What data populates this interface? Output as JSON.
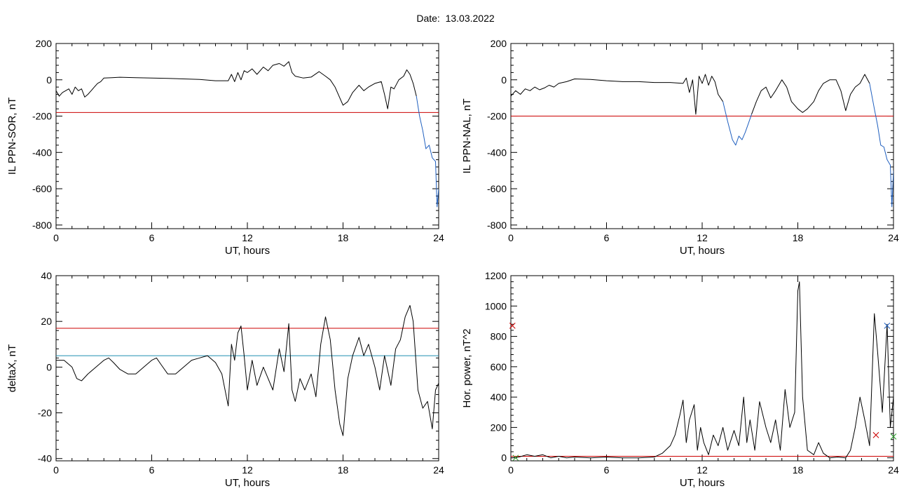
{
  "title": {
    "label": "Date:",
    "date": "13.03.2022"
  },
  "chart_data": [
    {
      "id": "il-sor",
      "type": "line",
      "ylabel": "IL PPN-SOR, nT",
      "xlabel": "UT, hours",
      "xlim": [
        0,
        24
      ],
      "ylim": [
        -820,
        200
      ],
      "xticks": [
        0,
        6,
        12,
        18,
        24
      ],
      "yticks": [
        -800,
        -600,
        -400,
        -200,
        0,
        200
      ],
      "hlines": [
        {
          "y": -180,
          "color": "#cc0000"
        }
      ],
      "series": [
        {
          "color": "#000000",
          "x": [
            0,
            0.2,
            0.4,
            0.6,
            0.8,
            1.0,
            1.2,
            1.4,
            1.6,
            1.8,
            2.0,
            2.2,
            2.4,
            2.6,
            2.8,
            3.0,
            3.5,
            4,
            5,
            6,
            7,
            8,
            9,
            10,
            10.8,
            11.0,
            11.2,
            11.4,
            11.6,
            11.8,
            12.0,
            12.3,
            12.6,
            13.0,
            13.3,
            13.6,
            14.0,
            14.3,
            14.6,
            14.8,
            15.0,
            15.5,
            16.0,
            16.5,
            16.9,
            17.2,
            17.5,
            17.8,
            18.0,
            18.3,
            18.6,
            19.0,
            19.3,
            19.6,
            20.0,
            20.4,
            20.6,
            20.8,
            21.0,
            21.2,
            21.5,
            21.8,
            22.0,
            22.2,
            22.4,
            22.6
          ],
          "y": [
            -60,
            -90,
            -70,
            -60,
            -50,
            -80,
            -40,
            -60,
            -50,
            -95,
            -80,
            -60,
            -40,
            -20,
            -10,
            10,
            12,
            14,
            12,
            10,
            8,
            5,
            2,
            -5,
            -5,
            30,
            -10,
            40,
            0,
            50,
            40,
            60,
            30,
            70,
            50,
            80,
            90,
            75,
            100,
            40,
            20,
            10,
            15,
            45,
            20,
            0,
            -40,
            -100,
            -140,
            -120,
            -70,
            -30,
            -60,
            -40,
            -20,
            -10,
            -80,
            -160,
            -40,
            -50,
            0,
            20,
            55,
            30,
            -20,
            -90
          ]
        },
        {
          "color": "#1f5fbf",
          "x": [
            22.6,
            22.8,
            23.0,
            23.2,
            23.4,
            23.6,
            23.8,
            23.9,
            24.0
          ],
          "y": [
            -90,
            -200,
            -280,
            -380,
            -360,
            -430,
            -450,
            -700,
            -600
          ]
        }
      ]
    },
    {
      "id": "il-nal",
      "type": "line",
      "ylabel": "IL PPN-NAL, nT",
      "xlabel": "UT, hours",
      "xlim": [
        0,
        24
      ],
      "ylim": [
        -820,
        200
      ],
      "xticks": [
        0,
        6,
        12,
        18,
        24
      ],
      "yticks": [
        -800,
        -600,
        -400,
        -200,
        0,
        200
      ],
      "hlines": [
        {
          "y": -200,
          "color": "#cc0000"
        }
      ],
      "series": [
        {
          "color": "#000000",
          "x": [
            0,
            0.3,
            0.6,
            0.9,
            1.2,
            1.5,
            1.8,
            2.1,
            2.4,
            2.7,
            3.0,
            3.5,
            4,
            5,
            6,
            7,
            8,
            9,
            10,
            10.8,
            11.0,
            11.2,
            11.4,
            11.6,
            11.8,
            12.0,
            12.2,
            12.4,
            12.6,
            12.8,
            13.0,
            13.3
          ],
          "y": [
            -90,
            -60,
            -80,
            -50,
            -60,
            -40,
            -55,
            -45,
            -30,
            -40,
            -20,
            -10,
            5,
            2,
            -5,
            -10,
            -10,
            -15,
            -15,
            -20,
            10,
            -70,
            0,
            -190,
            20,
            -20,
            30,
            -30,
            20,
            -10,
            -80,
            -120
          ]
        },
        {
          "color": "#1f5fbf",
          "x": [
            13.3,
            13.6,
            13.9,
            14.1,
            14.3,
            14.5,
            14.7,
            14.9,
            15.1
          ],
          "y": [
            -120,
            -230,
            -330,
            -360,
            -310,
            -330,
            -290,
            -240,
            -190
          ]
        },
        {
          "color": "#000000",
          "x": [
            15.1,
            15.4,
            15.7,
            16.0,
            16.3,
            16.6,
            17.0,
            17.3,
            17.6,
            18.0,
            18.3,
            18.6,
            19.0,
            19.3,
            19.6,
            20.0,
            20.4,
            20.7,
            21.0,
            21.3,
            21.6,
            21.9,
            22.2,
            22.5
          ],
          "y": [
            -190,
            -120,
            -60,
            -40,
            -100,
            -60,
            0,
            -40,
            -120,
            -160,
            -180,
            -160,
            -120,
            -60,
            -20,
            0,
            0,
            -60,
            -170,
            -80,
            -40,
            -20,
            30,
            -20
          ]
        },
        {
          "color": "#1f5fbf",
          "x": [
            22.5,
            22.8,
            23.0,
            23.2,
            23.4,
            23.6,
            23.8,
            23.9,
            24.0
          ],
          "y": [
            -20,
            -160,
            -250,
            -360,
            -370,
            -440,
            -470,
            -700,
            -500
          ]
        }
      ]
    },
    {
      "id": "delta-x",
      "type": "line",
      "ylabel": "deltaX, nT",
      "xlabel": "UT, hours",
      "xlim": [
        0,
        24
      ],
      "ylim": [
        -41,
        40
      ],
      "xticks": [
        0,
        6,
        12,
        18,
        24
      ],
      "yticks": [
        -40,
        -20,
        0,
        20,
        40
      ],
      "hlines": [
        {
          "y": 17,
          "color": "#cc0000"
        },
        {
          "y": 5,
          "color": "#1f8fb0"
        }
      ],
      "series": [
        {
          "color": "#000000",
          "x": [
            0,
            0.5,
            1.0,
            1.3,
            1.6,
            2.0,
            2.5,
            3.0,
            3.3,
            3.6,
            4.0,
            4.5,
            5.0,
            5.5,
            6.0,
            6.3,
            6.6,
            7.0,
            7.5,
            8.0,
            8.5,
            9.0,
            9.5,
            10.0,
            10.4,
            10.8,
            11.0,
            11.2,
            11.4,
            11.6,
            11.8,
            12.0,
            12.3,
            12.6,
            13.0,
            13.3,
            13.6,
            14.0,
            14.3,
            14.6,
            14.8,
            15.0,
            15.3,
            15.6,
            16.0,
            16.3,
            16.6,
            16.9,
            17.2,
            17.5,
            17.8,
            18.0,
            18.3,
            18.6,
            19.0,
            19.3,
            19.6,
            20.0,
            20.3,
            20.6,
            21.0,
            21.3,
            21.6,
            21.9,
            22.2,
            22.4,
            22.7,
            23.0,
            23.3,
            23.6,
            23.8,
            24.0
          ],
          "y": [
            3,
            3,
            0,
            -5,
            -6,
            -3,
            0,
            3,
            4,
            2,
            -1,
            -3,
            -3,
            0,
            3,
            4,
            1,
            -3,
            -3,
            0,
            3,
            4,
            5,
            2,
            -3,
            -17,
            10,
            3,
            15,
            18,
            5,
            -10,
            3,
            -8,
            0,
            -5,
            -10,
            8,
            -2,
            19,
            -10,
            -15,
            -5,
            -10,
            -3,
            -13,
            10,
            22,
            12,
            -10,
            -25,
            -30,
            -5,
            5,
            13,
            5,
            10,
            0,
            -10,
            5,
            -8,
            8,
            12,
            22,
            27,
            20,
            -10,
            -18,
            -15,
            -27,
            -10,
            -7
          ]
        }
      ]
    },
    {
      "id": "hor-power",
      "type": "line",
      "ylabel": "Hor. power, nT^2",
      "xlabel": "UT, hours",
      "xlim": [
        0,
        24
      ],
      "ylim": [
        -20,
        1200
      ],
      "xticks": [
        0,
        6,
        12,
        18,
        24
      ],
      "yticks": [
        0,
        200,
        400,
        600,
        800,
        1000,
        1200
      ],
      "hlines": [
        {
          "y": 10,
          "color": "#cc0000"
        }
      ],
      "markers": [
        {
          "x": 0.1,
          "y": 870,
          "color": "#cc0000"
        },
        {
          "x": 23.6,
          "y": 870,
          "color": "#1f5fbf"
        },
        {
          "x": 22.9,
          "y": 150,
          "color": "#cc0000"
        },
        {
          "x": 24.0,
          "y": 140,
          "color": "#2aa02a"
        },
        {
          "x": 0.3,
          "y": 0,
          "color": "#2aa02a"
        }
      ],
      "series": [
        {
          "color": "#000000",
          "x": [
            0,
            0.5,
            1.0,
            1.5,
            2.0,
            2.5,
            3.0,
            3.5,
            4.0,
            5.0,
            6.0,
            7.0,
            8.0,
            9.0,
            9.5,
            10.0,
            10.3,
            10.6,
            10.8,
            11.0,
            11.2,
            11.5,
            11.7,
            11.9,
            12.1,
            12.4,
            12.7,
            13.0,
            13.3,
            13.6,
            14.0,
            14.3,
            14.6,
            14.8,
            15.0,
            15.3,
            15.6,
            16.0,
            16.3,
            16.6,
            16.9,
            17.2,
            17.5,
            17.8,
            18.0,
            18.1,
            18.3,
            18.6,
            19.0,
            19.3,
            19.6,
            20.0,
            20.5,
            21.0,
            21.3,
            21.6,
            21.9,
            22.2,
            22.5,
            22.8,
            23.0,
            23.3,
            23.6,
            23.8,
            24.0
          ],
          "y": [
            0,
            5,
            20,
            10,
            20,
            0,
            10,
            0,
            5,
            0,
            5,
            0,
            0,
            5,
            30,
            80,
            150,
            280,
            380,
            100,
            250,
            350,
            50,
            200,
            100,
            20,
            150,
            80,
            200,
            50,
            180,
            80,
            400,
            100,
            250,
            50,
            370,
            200,
            100,
            250,
            50,
            450,
            200,
            300,
            1100,
            1160,
            400,
            50,
            20,
            100,
            30,
            0,
            5,
            0,
            50,
            200,
            400,
            250,
            80,
            950,
            700,
            300,
            880,
            200,
            400
          ]
        }
      ]
    }
  ]
}
